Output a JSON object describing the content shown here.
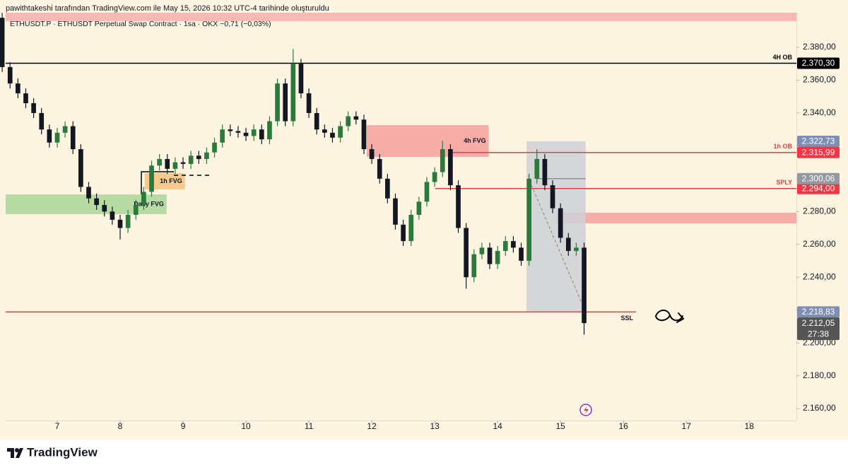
{
  "attribution": "pawithtakeshi tarafından TradingView.com ile May 15, 2026 10:32 UTC-4 tarihinde oluşturuldu",
  "brand": "TradingView",
  "chart_data": {
    "type": "candlestick",
    "title": "ETHUSDT.P · ETHUSDT Perpetual Swap Contract · 1sa · OKX  −0,71 (−0,03%)",
    "up_color": "#2a7a3c",
    "down_color": "#131722",
    "xlim": [
      6.18,
      18.75
    ],
    "xticks": [
      7,
      8,
      9,
      10,
      11,
      12,
      13,
      14,
      15,
      16,
      17,
      18
    ],
    "ylim": [
      2152.7,
      2401.1
    ],
    "yticks": [
      {
        "value": 2160,
        "label": "2.160,00"
      },
      {
        "value": 2180,
        "label": "2.180,00"
      },
      {
        "value": 2200,
        "label": "2.200,00"
      },
      {
        "value": 2220,
        "label": "2.220,00"
      },
      {
        "value": 2240,
        "label": "2.240,00"
      },
      {
        "value": 2260,
        "label": "2.260,00"
      },
      {
        "value": 2280,
        "label": "2.280,00"
      },
      {
        "value": 2300,
        "label": "2.300,00"
      },
      {
        "value": 2320,
        "label": "2.320,00"
      },
      {
        "value": 2340,
        "label": "2.340,00"
      },
      {
        "value": 2360,
        "label": "2.360,00"
      },
      {
        "value": 2380,
        "label": "2.380,00"
      }
    ],
    "x": [
      6.125,
      6.25,
      6.375,
      6.5,
      6.625,
      6.75,
      6.875,
      7,
      7.125,
      7.25,
      7.375,
      7.5,
      7.625,
      7.75,
      7.875,
      8,
      8.125,
      8.25,
      8.375,
      8.5,
      8.625,
      8.75,
      8.875,
      9,
      9.125,
      9.25,
      9.375,
      9.5,
      9.625,
      9.75,
      9.875,
      10,
      10.125,
      10.25,
      10.375,
      10.5,
      10.625,
      10.75,
      10.875,
      11,
      11.125,
      11.25,
      11.375,
      11.5,
      11.625,
      11.75,
      11.875,
      12,
      12.125,
      12.25,
      12.375,
      12.5,
      12.625,
      12.75,
      12.875,
      13,
      13.125,
      13.25,
      13.375,
      13.5,
      13.625,
      13.75,
      13.875,
      14,
      14.125,
      14.25,
      14.375,
      14.5,
      14.625,
      14.75,
      14.875,
      15,
      15.125,
      15.25,
      15.375
    ],
    "open": [
      2398,
      2368,
      2358,
      2352,
      2346,
      2340,
      2330,
      2322,
      2328,
      2332,
      2318,
      2295,
      2288,
      2284,
      2280,
      2275,
      2270,
      2278,
      2284,
      2292,
      2308,
      2312,
      2306,
      2310,
      2309,
      2314,
      2312,
      2316,
      2322,
      2330,
      2329,
      2328,
      2326,
      2330,
      2324,
      2335,
      2358,
      2335,
      2370,
      2352,
      2340,
      2330,
      2328,
      2325,
      2332,
      2338,
      2336,
      2318,
      2312,
      2300,
      2288,
      2272,
      2262,
      2278,
      2286,
      2298,
      2304,
      2318,
      2296,
      2270,
      2240,
      2254,
      2258,
      2248,
      2256,
      2262,
      2258,
      2250,
      2300,
      2312,
      2296,
      2282,
      2264,
      2256,
      2258
    ],
    "high": [
      2401,
      2371,
      2361,
      2355,
      2349,
      2343,
      2333,
      2331,
      2335,
      2335,
      2321,
      2298,
      2291,
      2287,
      2283,
      2278,
      2281,
      2287,
      2295,
      2311,
      2315,
      2315,
      2313,
      2313,
      2317,
      2317,
      2319,
      2325,
      2333,
      2333,
      2332,
      2331,
      2333,
      2333,
      2338,
      2361,
      2361,
      2379,
      2373,
      2355,
      2343,
      2333,
      2331,
      2335,
      2341,
      2341,
      2339,
      2321,
      2315,
      2303,
      2291,
      2275,
      2281,
      2289,
      2301,
      2307,
      2323,
      2321,
      2299,
      2273,
      2257,
      2261,
      2261,
      2259,
      2265,
      2265,
      2261,
      2303,
      2318,
      2315,
      2299,
      2285,
      2267,
      2261,
      2261
    ],
    "low": [
      2365,
      2355,
      2349,
      2343,
      2337,
      2327,
      2319,
      2319,
      2325,
      2315,
      2292,
      2285,
      2281,
      2277,
      2272,
      2263,
      2267,
      2275,
      2281,
      2289,
      2305,
      2303,
      2303,
      2306,
      2306,
      2309,
      2309,
      2313,
      2319,
      2326,
      2325,
      2323,
      2323,
      2321,
      2321,
      2332,
      2332,
      2332,
      2349,
      2337,
      2327,
      2325,
      2322,
      2322,
      2329,
      2333,
      2315,
      2309,
      2297,
      2285,
      2269,
      2259,
      2259,
      2275,
      2283,
      2295,
      2301,
      2293,
      2267,
      2233,
      2237,
      2251,
      2245,
      2245,
      2253,
      2255,
      2247,
      2247,
      2297,
      2293,
      2279,
      2261,
      2253,
      2253,
      2205
    ],
    "close": [
      2368,
      2358,
      2352,
      2346,
      2340,
      2330,
      2322,
      2328,
      2332,
      2318,
      2295,
      2288,
      2284,
      2280,
      2275,
      2270,
      2278,
      2284,
      2292,
      2308,
      2312,
      2306,
      2310,
      2309,
      2314,
      2312,
      2316,
      2322,
      2330,
      2329,
      2328,
      2326,
      2330,
      2324,
      2335,
      2358,
      2335,
      2370,
      2352,
      2340,
      2330,
      2328,
      2325,
      2332,
      2338,
      2336,
      2318,
      2312,
      2300,
      2288,
      2272,
      2262,
      2278,
      2286,
      2298,
      2304,
      2318,
      2296,
      2270,
      2240,
      2254,
      2258,
      2248,
      2256,
      2262,
      2258,
      2250,
      2300,
      2312,
      2296,
      2282,
      2264,
      2256,
      2258,
      2212.05
    ],
    "last_price": {
      "value": 2212.05,
      "label": "2.212,05"
    },
    "countdown": "27:38",
    "last_color": "#555555",
    "zones": [
      {
        "y": [
          2396,
          2401.1
        ],
        "color": "#f8b9b4"
      },
      {
        "name": "4h FVG",
        "x": [
          11.92,
          13.86
        ],
        "y": [
          2313.3,
          2332.6
        ],
        "color": "#f6aca7"
      },
      {
        "name": "1h FVG",
        "x": [
          8.39,
          9.03
        ],
        "y": [
          2293.5,
          2303.4
        ],
        "color": "#f7c98d"
      },
      {
        "name": "Daily FVG",
        "x": [
          6.18,
          8.74
        ],
        "y": [
          2278.4,
          2290.4
        ],
        "color": "#b7dba3"
      },
      {
        "x": [
          14.94,
          18.75
        ],
        "y": [
          2272.8,
          2279.3
        ],
        "color": "#f6aca7"
      },
      {
        "x": [
          14.46,
          15.4
        ],
        "y": [
          {
            "value": 2218.83,
            "label": "2.218,83"
          },
          {
            "value": 2322.73,
            "label": "2.322,73"
          }
        ],
        "color": "#cdd0d6",
        "tag_color": "#7f8fb3"
      }
    ],
    "lines": [
      {
        "name": "4H OB",
        "price": {
          "value": 2370.3,
          "label": "2.370,30"
        },
        "color": "#000000",
        "tag_color": "#000000"
      },
      {
        "name": "1h OB",
        "price": {
          "value": 2315.99,
          "label": "2.315,99"
        },
        "x": [
          13.24,
          18.75
        ],
        "color": "#f23645",
        "tag_color": "#f23645"
      },
      {
        "name": "SPLY",
        "price": {
          "value": 2294.0,
          "label": "2.294,00"
        },
        "x": [
          13.01,
          18.75
        ],
        "color": "#f23645",
        "tag_color": "#f23645"
      },
      {
        "price": {
          "value": 2300.06,
          "label": "2.300,06"
        },
        "x": [
          14.63,
          15.4
        ],
        "color": "#8a8f99",
        "tag_color": "#9598a1"
      },
      {
        "name": "SSL",
        "price": {
          "value": 2218.83
        },
        "x": [
          6.18,
          16.2
        ],
        "color": "#e0404a"
      }
    ]
  }
}
